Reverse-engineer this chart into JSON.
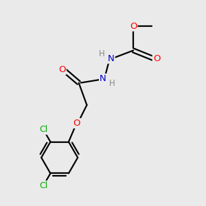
{
  "bg_color": "#eaeaea",
  "atom_colors": {
    "O": "#ff0000",
    "N": "#0000cc",
    "Cl": "#00aa00",
    "H": "#888888",
    "C": "#000000"
  },
  "bond_color": "#000000",
  "line_width": 1.6,
  "figsize": [
    3.0,
    3.0
  ],
  "dpi": 100,
  "xlim": [
    0,
    10
  ],
  "ylim": [
    0,
    10
  ]
}
